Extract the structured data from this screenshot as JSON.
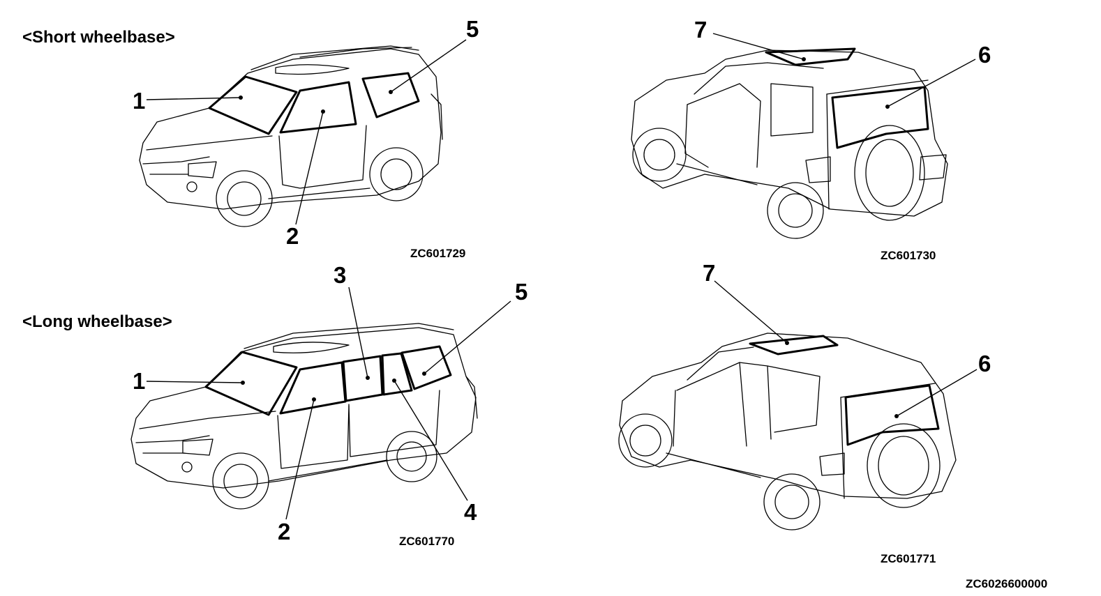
{
  "headings": {
    "short": "<Short wheelbase>",
    "long": "<Long wheelbase>"
  },
  "codes": {
    "short_front": "ZC601729",
    "short_rear": "ZC601730",
    "long_front": "ZC601770",
    "long_rear": "ZC601771",
    "sheet": "ZC6026600000"
  },
  "callouts": {
    "c1": "1",
    "c2": "2",
    "c3": "3",
    "c4": "4",
    "c5": "5",
    "c6": "6",
    "c7": "7"
  }
}
